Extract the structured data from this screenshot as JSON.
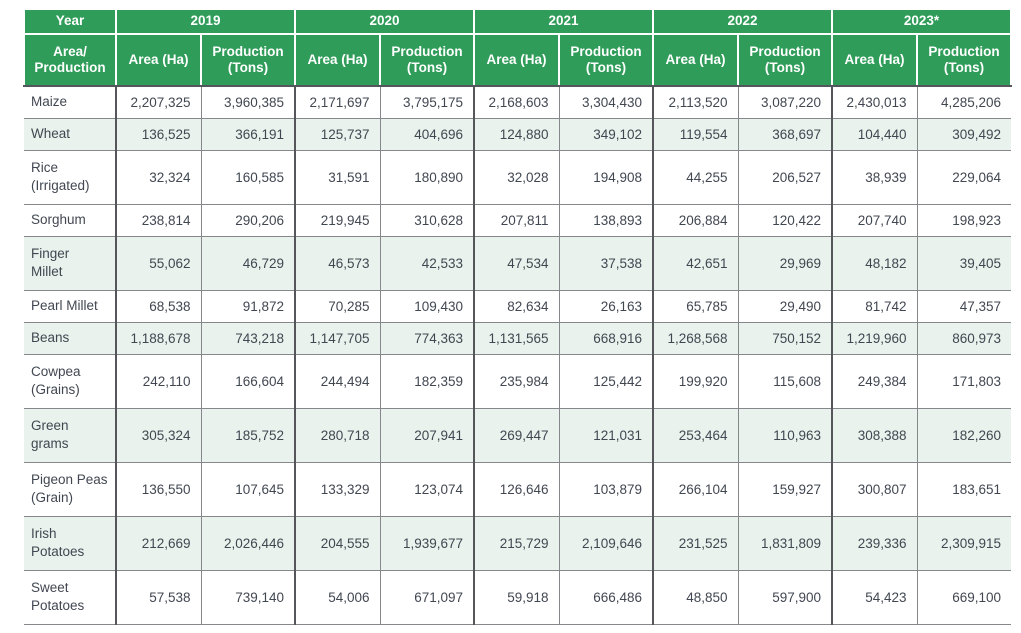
{
  "page": {
    "background": "#ffffff"
  },
  "table": {
    "corner": {
      "year_label": "Year",
      "axis_label": "Area/\nProduction"
    },
    "years": [
      "2019",
      "2020",
      "2021",
      "2022",
      "2023*"
    ],
    "sub_headers": {
      "area": "Area (Ha)",
      "production": "Production (Tons)"
    },
    "colors": {
      "header_bg": "#2f9d59",
      "header_text": "#ffffff",
      "shaded_row_bg": "#e9f2ec",
      "body_text": "#414751",
      "grid_light": "#85878a",
      "grid_dark": "#54565a"
    },
    "rows": [
      {
        "label": "Maize",
        "shaded": false,
        "values": [
          "2,207,325",
          "3,960,385",
          "2,171,697",
          "3,795,175",
          "2,168,603",
          "3,304,430",
          "2,113,520",
          "3,087,220",
          "2,430,013",
          "4,285,206"
        ]
      },
      {
        "label": "Wheat",
        "shaded": true,
        "values": [
          "136,525",
          "366,191",
          "125,737",
          "404,696",
          "124,880",
          "349,102",
          "119,554",
          "368,697",
          "104,440",
          "309,492"
        ]
      },
      {
        "label": "Rice\n(Irrigated)",
        "shaded": false,
        "values": [
          "32,324",
          "160,585",
          "31,591",
          "180,890",
          "32,028",
          "194,908",
          "44,255",
          "206,527",
          "38,939",
          "229,064"
        ]
      },
      {
        "label": "Sorghum",
        "shaded": false,
        "values": [
          "238,814",
          "290,206",
          "219,945",
          "310,628",
          "207,811",
          "138,893",
          "206,884",
          "120,422",
          "207,740",
          "198,923"
        ]
      },
      {
        "label": "Finger\nMillet",
        "shaded": true,
        "values": [
          "55,062",
          "46,729",
          "46,573",
          "42,533",
          "47,534",
          "37,538",
          "42,651",
          "29,969",
          "48,182",
          "39,405"
        ]
      },
      {
        "label": "Pearl Millet",
        "shaded": false,
        "values": [
          "68,538",
          "91,872",
          "70,285",
          "109,430",
          "82,634",
          "26,163",
          "65,785",
          "29,490",
          "81,742",
          "47,357"
        ]
      },
      {
        "label": "Beans",
        "shaded": true,
        "values": [
          "1,188,678",
          "743,218",
          "1,147,705",
          "774,363",
          "1,131,565",
          "668,916",
          "1,268,568",
          "750,152",
          "1,219,960",
          "860,973"
        ]
      },
      {
        "label": "Cowpea\n(Grains)",
        "shaded": false,
        "values": [
          "242,110",
          "166,604",
          "244,494",
          "182,359",
          "235,984",
          "125,442",
          "199,920",
          "115,608",
          "249,384",
          "171,803"
        ]
      },
      {
        "label": "Green\ngrams",
        "shaded": true,
        "values": [
          "305,324",
          "185,752",
          "280,718",
          "207,941",
          "269,447",
          "121,031",
          "253,464",
          "110,963",
          "308,388",
          "182,260"
        ]
      },
      {
        "label": "Pigeon Peas\n(Grain)",
        "shaded": false,
        "values": [
          "136,550",
          "107,645",
          "133,329",
          "123,074",
          "126,646",
          "103,879",
          "266,104",
          "159,927",
          "300,807",
          "183,651"
        ]
      },
      {
        "label": "Irish\nPotatoes",
        "shaded": true,
        "values": [
          "212,669",
          "2,026,446",
          "204,555",
          "1,939,677",
          "215,729",
          "2,109,646",
          "231,525",
          "1,831,809",
          "239,336",
          "2,309,915"
        ]
      },
      {
        "label": "Sweet\nPotatoes",
        "shaded": false,
        "values": [
          "57,538",
          "739,140",
          "54,006",
          "671,097",
          "59,918",
          "666,486",
          "48,850",
          "597,900",
          "54,423",
          "669,100"
        ]
      }
    ]
  }
}
